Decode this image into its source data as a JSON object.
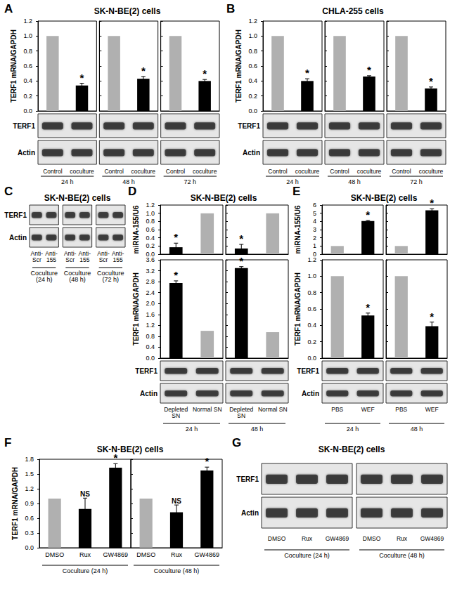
{
  "panels": [
    {
      "letter": "A",
      "title": "SK-N-BE(2) cells"
    },
    {
      "letter": "B",
      "title": "CHLA-255 cells"
    },
    {
      "letter": "C",
      "title": "SK-N-BE(2) cells"
    },
    {
      "letter": "D",
      "title": "SK-N-BE(2) cells"
    },
    {
      "letter": "E",
      "title": "SK-N-BE(2) cells"
    },
    {
      "letter": "F",
      "title": "SK-N-BE(2) cells"
    },
    {
      "letter": "G",
      "title": "SK-N-BE(2) cells"
    }
  ],
  "chart_data": [
    {
      "type": "bar",
      "panel": "A",
      "y_label": "TERF1 mRNA/GAPDH",
      "group": "24 h",
      "categories": [
        "Control",
        "coculture"
      ],
      "values": [
        1.0,
        0.34
      ],
      "errors": [
        0,
        0.03
      ],
      "colors": [
        "#b0b0b0",
        "#000000"
      ],
      "annotations": [
        null,
        "*"
      ],
      "ylim": [
        0,
        1.2
      ],
      "yticks": [
        {
          "value": 0,
          "label": "0.0"
        },
        0.2,
        0.4,
        0.6,
        0.8,
        {
          "value": 1,
          "label": "1.0"
        },
        1.2
      ],
      "tick_labels": "y"
    },
    {
      "type": "bar",
      "panel": "A",
      "group": "48 h",
      "categories": [
        "Control",
        "coculture"
      ],
      "values": [
        1.0,
        0.43
      ],
      "errors": [
        0,
        0.03
      ],
      "colors": [
        "#b0b0b0",
        "#000000"
      ],
      "annotations": [
        null,
        "*"
      ],
      "ylim": [
        0,
        1.2
      ],
      "yticks": [
        {
          "value": 0,
          "label": "0.0"
        },
        0.2,
        0.4,
        0.6,
        0.8,
        {
          "value": 1,
          "label": "1.0"
        },
        1.2
      ],
      "tick_labels": false
    },
    {
      "type": "bar",
      "panel": "A",
      "group": "72 h",
      "categories": [
        "Control",
        "coculture"
      ],
      "values": [
        1.0,
        0.4
      ],
      "errors": [
        0,
        0.02
      ],
      "colors": [
        "#b0b0b0",
        "#000000"
      ],
      "annotations": [
        null,
        "*"
      ],
      "ylim": [
        0,
        1.2
      ],
      "yticks": [
        {
          "value": 0,
          "label": "0.0"
        },
        0.2,
        0.4,
        0.6,
        0.8,
        {
          "value": 1,
          "label": "1.0"
        },
        1.2
      ],
      "tick_labels": false
    },
    {
      "type": "bar",
      "panel": "B",
      "y_label": "TERF1 mRNA/GAPDH",
      "group": "24 h",
      "categories": [
        "Control",
        "coculture"
      ],
      "values": [
        1.0,
        0.4
      ],
      "errors": [
        0,
        0.03
      ],
      "colors": [
        "#b0b0b0",
        "#000000"
      ],
      "annotations": [
        null,
        "*"
      ],
      "ylim": [
        0,
        1.2
      ],
      "yticks": [
        {
          "value": 0,
          "label": "0.0"
        },
        0.2,
        0.4,
        0.6,
        0.8,
        {
          "value": 1,
          "label": "1.0"
        },
        1.2
      ],
      "tick_labels": "y"
    },
    {
      "type": "bar",
      "panel": "B",
      "group": "48 h",
      "categories": [
        "Control",
        "coculture"
      ],
      "values": [
        1.0,
        0.46
      ],
      "errors": [
        0,
        0.01
      ],
      "colors": [
        "#b0b0b0",
        "#000000"
      ],
      "annotations": [
        null,
        "*"
      ],
      "ylim": [
        0,
        1.2
      ],
      "yticks": [
        {
          "value": 0,
          "label": "0.0"
        },
        0.2,
        0.4,
        0.6,
        0.8,
        {
          "value": 1,
          "label": "1.0"
        },
        1.2
      ],
      "tick_labels": false
    },
    {
      "type": "bar",
      "panel": "B",
      "group": "72 h",
      "categories": [
        "Control",
        "coculture"
      ],
      "values": [
        1.0,
        0.3
      ],
      "errors": [
        0,
        0.02
      ],
      "colors": [
        "#b0b0b0",
        "#000000"
      ],
      "annotations": [
        null,
        "*"
      ],
      "ylim": [
        0,
        1.2
      ],
      "yticks": [
        {
          "value": 0,
          "label": "0.0"
        },
        0.2,
        0.4,
        0.6,
        0.8,
        {
          "value": 1,
          "label": "1.0"
        },
        1.2
      ],
      "tick_labels": false
    },
    {
      "type": "bar",
      "panel": "D",
      "y_label": "miRNA-155/U6",
      "categories": [
        "Depleted SN",
        "Normal SN"
      ],
      "values": [
        0.17,
        1.0
      ],
      "errors": [
        0.1,
        0
      ],
      "colors": [
        "#000000",
        "#b0b0b0"
      ],
      "annotations": [
        "*",
        null
      ],
      "ylim": [
        0,
        1.2
      ],
      "yticks": [
        {
          "value": 0,
          "label": "0.0"
        },
        0.2,
        0.4,
        0.6,
        0.8,
        {
          "value": 1,
          "label": "1.0"
        },
        1.2
      ],
      "tick_labels": "y"
    },
    {
      "type": "bar",
      "panel": "D",
      "categories": [
        "Depleted SN",
        "Normal SN"
      ],
      "values": [
        0.14,
        1.0
      ],
      "errors": [
        0.1,
        0
      ],
      "colors": [
        "#000000",
        "#b0b0b0"
      ],
      "annotations": [
        "*",
        null
      ],
      "ylim": [
        0,
        1.2
      ],
      "yticks": [
        {
          "value": 0,
          "label": "0.0"
        },
        0.2,
        0.4,
        0.6,
        0.8,
        {
          "value": 1,
          "label": "1.0"
        },
        1.2
      ],
      "tick_labels": false
    },
    {
      "type": "bar",
      "panel": "D",
      "y_label": "TERF1 mRNA/GAPDH",
      "group": "24 h",
      "categories": [
        "Depleted SN",
        "Normal SN"
      ],
      "values": [
        2.75,
        1.0
      ],
      "errors": [
        0.08,
        0
      ],
      "colors": [
        "#000000",
        "#b0b0b0"
      ],
      "annotations": [
        "*",
        null
      ],
      "ylim": [
        0,
        3.6
      ],
      "yticks": [
        {
          "value": 0,
          "label": "0.0"
        },
        0.4,
        0.8,
        1.2,
        1.6,
        {
          "value": 2,
          "label": "2.0"
        },
        2.4,
        2.8,
        3.2,
        3.6
      ],
      "tick_labels": "y"
    },
    {
      "type": "bar",
      "panel": "D",
      "group": "48 h",
      "categories": [
        "Depleted SN",
        "Normal SN"
      ],
      "values": [
        3.3,
        0.95
      ],
      "errors": [
        0.05,
        0
      ],
      "colors": [
        "#000000",
        "#b0b0b0"
      ],
      "annotations": [
        "*",
        null
      ],
      "ylim": [
        0,
        3.6
      ],
      "yticks": [
        {
          "value": 0,
          "label": "0.0"
        },
        0.4,
        0.8,
        1.2,
        1.6,
        {
          "value": 2,
          "label": "2.0"
        },
        2.4,
        2.8,
        3.2,
        3.6
      ],
      "tick_labels": false
    },
    {
      "type": "bar",
      "panel": "E",
      "y_label": "miRNA-155/U6",
      "categories": [
        "PBS",
        "WEF"
      ],
      "values": [
        1.0,
        4.05
      ],
      "errors": [
        0,
        0.08
      ],
      "colors": [
        "#b0b0b0",
        "#000000"
      ],
      "annotations": [
        null,
        "*"
      ],
      "ylim": [
        0,
        6
      ],
      "yticks": [
        0,
        1,
        2,
        3,
        4,
        5,
        6
      ],
      "tick_labels": "y"
    },
    {
      "type": "bar",
      "panel": "E",
      "categories": [
        "PBS",
        "WEF"
      ],
      "values": [
        1.0,
        5.35
      ],
      "errors": [
        0,
        0.2
      ],
      "colors": [
        "#b0b0b0",
        "#000000"
      ],
      "annotations": [
        null,
        "*"
      ],
      "ylim": [
        0,
        6
      ],
      "yticks": [
        0,
        1,
        2,
        3,
        4,
        5,
        6
      ],
      "tick_labels": false
    },
    {
      "type": "bar",
      "panel": "E",
      "y_label": "TERF1 mRNA/GAPDH",
      "group": "24 h",
      "categories": [
        "PBS",
        "WEF"
      ],
      "values": [
        1.0,
        0.52
      ],
      "errors": [
        0,
        0.03
      ],
      "colors": [
        "#b0b0b0",
        "#000000"
      ],
      "annotations": [
        null,
        "*"
      ],
      "ylim": [
        0,
        1.2
      ],
      "yticks": [
        {
          "value": 0,
          "label": "0.0"
        },
        0.2,
        0.4,
        0.6,
        0.8,
        {
          "value": 1,
          "label": "1.0"
        },
        1.2
      ],
      "tick_labels": "y"
    },
    {
      "type": "bar",
      "panel": "E",
      "group": "48 h",
      "categories": [
        "PBS",
        "WEF"
      ],
      "values": [
        1.0,
        0.39
      ],
      "errors": [
        0,
        0.05
      ],
      "colors": [
        "#b0b0b0",
        "#000000"
      ],
      "annotations": [
        null,
        "*"
      ],
      "ylim": [
        0,
        1.2
      ],
      "yticks": [
        {
          "value": 0,
          "label": "0.0"
        },
        0.2,
        0.4,
        0.6,
        0.8,
        {
          "value": 1,
          "label": "1.0"
        },
        1.2
      ],
      "tick_labels": false
    },
    {
      "type": "bar",
      "panel": "F",
      "y_label": "TERF1 mRNA/GAPDH",
      "group": "Coculture (24 h)",
      "categories": [
        "DMSO",
        "Rux",
        "GW4869"
      ],
      "values": [
        1.0,
        0.79,
        1.63
      ],
      "errors": [
        0,
        0.22,
        0.08
      ],
      "colors": [
        "#b0b0b0",
        "#000000",
        "#000000"
      ],
      "annotations": [
        null,
        "NS",
        "*"
      ],
      "ylim": [
        0,
        1.8
      ],
      "yticks": [
        {
          "value": 0,
          "label": "0.0"
        },
        0.3,
        0.6,
        0.9,
        1.2,
        1.5,
        1.8
      ]
    },
    {
      "type": "bar",
      "panel": "F",
      "group": "Coculture (48 h)",
      "categories": [
        "DMSO",
        "Rux",
        "GW4869"
      ],
      "values": [
        1.0,
        0.72,
        1.57
      ],
      "errors": [
        0,
        0.15,
        0.07
      ],
      "colors": [
        "#b0b0b0",
        "#000000",
        "#000000"
      ],
      "annotations": [
        null,
        "NS",
        "*"
      ],
      "ylim": [
        0,
        1.8
      ],
      "yticks": [
        {
          "value": 0,
          "label": "0.0"
        },
        0.3,
        0.6,
        0.9,
        1.2,
        1.5,
        1.8
      ],
      "tick_labels": "x"
    }
  ],
  "blots": [
    {
      "panel": "A",
      "rows": [
        "TERF1",
        "Actin"
      ]
    },
    {
      "panel": "B",
      "rows": [
        "TERF1",
        "Actin"
      ]
    },
    {
      "panel": "C",
      "rows": [
        "TERF1",
        "Actin"
      ],
      "lanes": [
        "Anti-Scr",
        "Anti-155",
        "Anti-Scr",
        "Anti-155",
        "Anti-Scr",
        "Anti-155"
      ],
      "groups": [
        "Coculture (24 h)",
        "Coculture (48 h)",
        "Coculture (72 h)"
      ]
    },
    {
      "panel": "D",
      "rows": [
        "TERF1",
        "Actin"
      ]
    },
    {
      "panel": "E",
      "rows": [
        "TERF1",
        "Actin"
      ]
    },
    {
      "panel": "G",
      "rows": [
        "TERF1",
        "Actin"
      ],
      "lanes": [
        "DMSO",
        "Rux",
        "GW4869",
        "DMSO",
        "Rux",
        "GW4869"
      ],
      "groups": [
        "Coculture (24 h)",
        "Coculture (48 h)"
      ]
    }
  ]
}
